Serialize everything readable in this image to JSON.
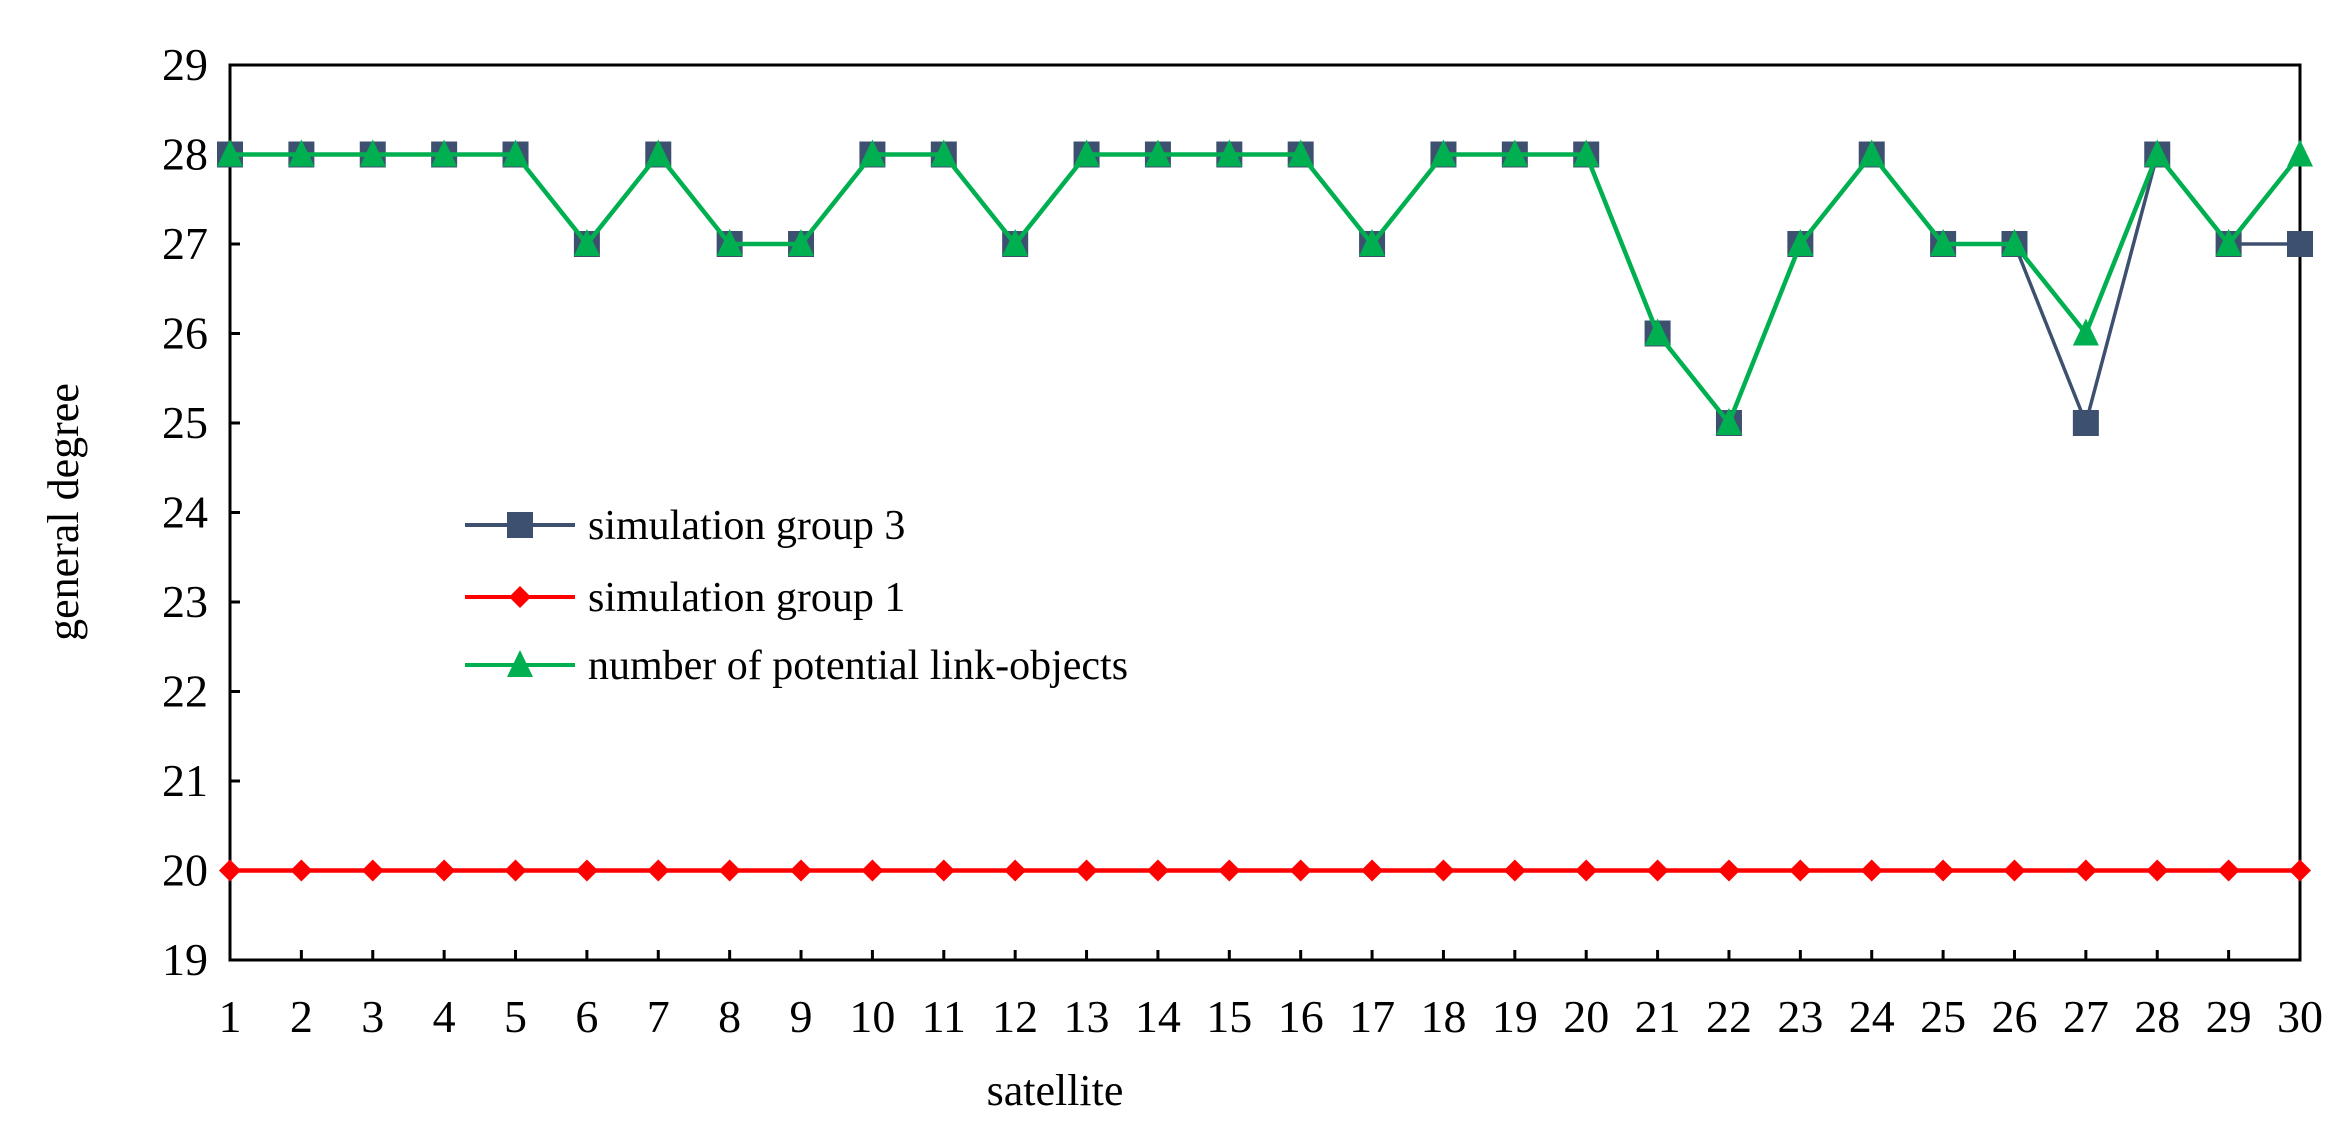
{
  "chart_data": {
    "type": "line",
    "xlabel": "satellite",
    "ylabel": "general degree",
    "xlim": [
      1,
      30
    ],
    "ylim": [
      19,
      29
    ],
    "x_ticks": [
      1,
      2,
      3,
      4,
      5,
      6,
      7,
      8,
      9,
      10,
      11,
      12,
      13,
      14,
      15,
      16,
      17,
      18,
      19,
      20,
      21,
      22,
      23,
      24,
      25,
      26,
      27,
      28,
      29,
      30
    ],
    "y_ticks": [
      19,
      20,
      21,
      22,
      23,
      24,
      25,
      26,
      27,
      28,
      29
    ],
    "grid": false,
    "legend_position": "center-left",
    "x": [
      1,
      2,
      3,
      4,
      5,
      6,
      7,
      8,
      9,
      10,
      11,
      12,
      13,
      14,
      15,
      16,
      17,
      18,
      19,
      20,
      21,
      22,
      23,
      24,
      25,
      26,
      27,
      28,
      29,
      30
    ],
    "series": [
      {
        "name": "simulation group 3",
        "color": "#3d5070",
        "marker": "square",
        "values": [
          28,
          28,
          28,
          28,
          28,
          27,
          28,
          27,
          27,
          28,
          28,
          27,
          28,
          28,
          28,
          28,
          27,
          28,
          28,
          28,
          26,
          25,
          27,
          28,
          27,
          27,
          25,
          28,
          27,
          27
        ]
      },
      {
        "name": "simulation group 1",
        "color": "#ff0000",
        "marker": "diamond",
        "values": [
          20,
          20,
          20,
          20,
          20,
          20,
          20,
          20,
          20,
          20,
          20,
          20,
          20,
          20,
          20,
          20,
          20,
          20,
          20,
          20,
          20,
          20,
          20,
          20,
          20,
          20,
          20,
          20,
          20,
          20
        ]
      },
      {
        "name": "number of potential link-objects",
        "color": "#00b050",
        "marker": "triangle",
        "values": [
          28,
          28,
          28,
          28,
          28,
          27,
          28,
          27,
          27,
          28,
          28,
          27,
          28,
          28,
          28,
          28,
          27,
          28,
          28,
          28,
          26,
          25,
          27,
          28,
          27,
          27,
          26,
          28,
          27,
          28
        ]
      }
    ]
  }
}
